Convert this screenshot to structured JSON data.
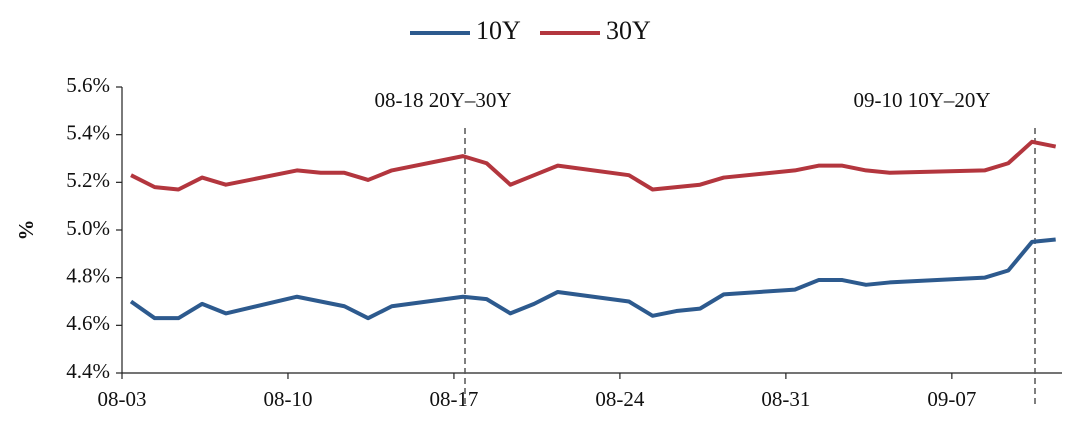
{
  "chart_data": {
    "type": "line",
    "y_label": "%",
    "x": [
      "08-03",
      "08-04",
      "08-05",
      "08-06",
      "08-07",
      "08-10",
      "08-11",
      "08-12",
      "08-13",
      "08-14",
      "08-17",
      "08-18",
      "08-19",
      "08-20",
      "08-21",
      "08-24",
      "08-25",
      "08-26",
      "08-27",
      "08-28",
      "08-31",
      "09-01",
      "09-02",
      "09-03",
      "09-04",
      "09-08",
      "09-09",
      "09-10",
      "09-11"
    ],
    "series": [
      {
        "name": "10Y",
        "color": "#2d5a8e",
        "values": [
          4.7,
          4.63,
          4.63,
          4.69,
          4.65,
          4.72,
          4.7,
          4.68,
          4.63,
          4.68,
          4.72,
          4.71,
          4.65,
          4.69,
          4.74,
          4.7,
          4.64,
          4.66,
          4.67,
          4.73,
          4.75,
          4.79,
          4.79,
          4.77,
          4.78,
          4.8,
          4.83,
          4.95,
          4.96
        ]
      },
      {
        "name": "30Y",
        "color": "#b3363e",
        "values": [
          5.23,
          5.18,
          5.17,
          5.22,
          5.19,
          5.25,
          5.24,
          5.24,
          5.21,
          5.25,
          5.31,
          5.28,
          5.19,
          5.23,
          5.27,
          5.23,
          5.17,
          5.18,
          5.19,
          5.22,
          5.25,
          5.27,
          5.27,
          5.25,
          5.24,
          5.25,
          5.28,
          5.37,
          5.35
        ]
      }
    ],
    "xticks": [
      "08-03",
      "08-10",
      "08-17",
      "08-24",
      "08-31",
      "09-07"
    ],
    "ylim": [
      4.4,
      5.6
    ],
    "yticks": [
      {
        "value": 4.4,
        "label": "4.4%"
      },
      {
        "value": 4.6,
        "label": "4.6%"
      },
      {
        "value": 4.8,
        "label": "4.8%"
      },
      {
        "value": 5.0,
        "label": "5.0%"
      },
      {
        "value": 5.2,
        "label": "5.2%"
      },
      {
        "value": 5.4,
        "label": "5.4%"
      },
      {
        "value": 5.6,
        "label": "5.6%"
      }
    ],
    "annotations": [
      "08-18 20Y–30Y",
      "09-10 10Y–20Y"
    ],
    "legend": "top"
  }
}
